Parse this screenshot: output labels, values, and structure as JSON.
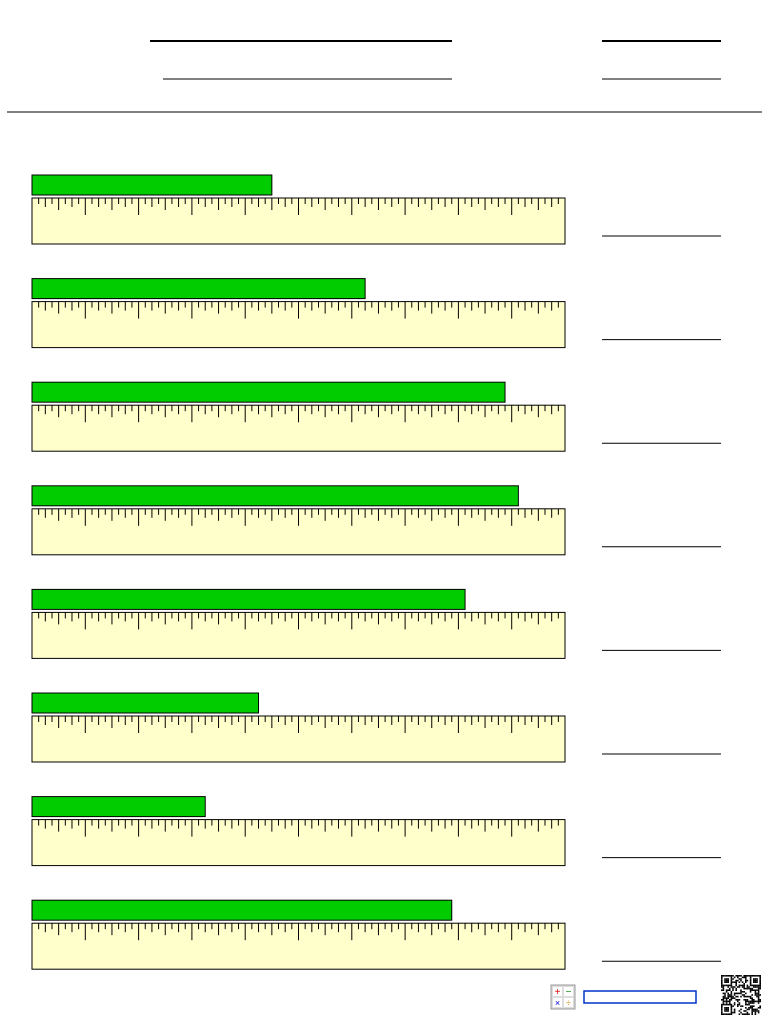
{
  "ruler": {
    "length": 10,
    "subdivisions": 8
  },
  "problems": [
    {
      "length": 4.5
    },
    {
      "length": 6.25
    },
    {
      "length": 8.875
    },
    {
      "length": 9.125
    },
    {
      "length": 8.125
    },
    {
      "length": 4.25
    },
    {
      "length": 3.25
    },
    {
      "length": 7.875
    }
  ]
}
